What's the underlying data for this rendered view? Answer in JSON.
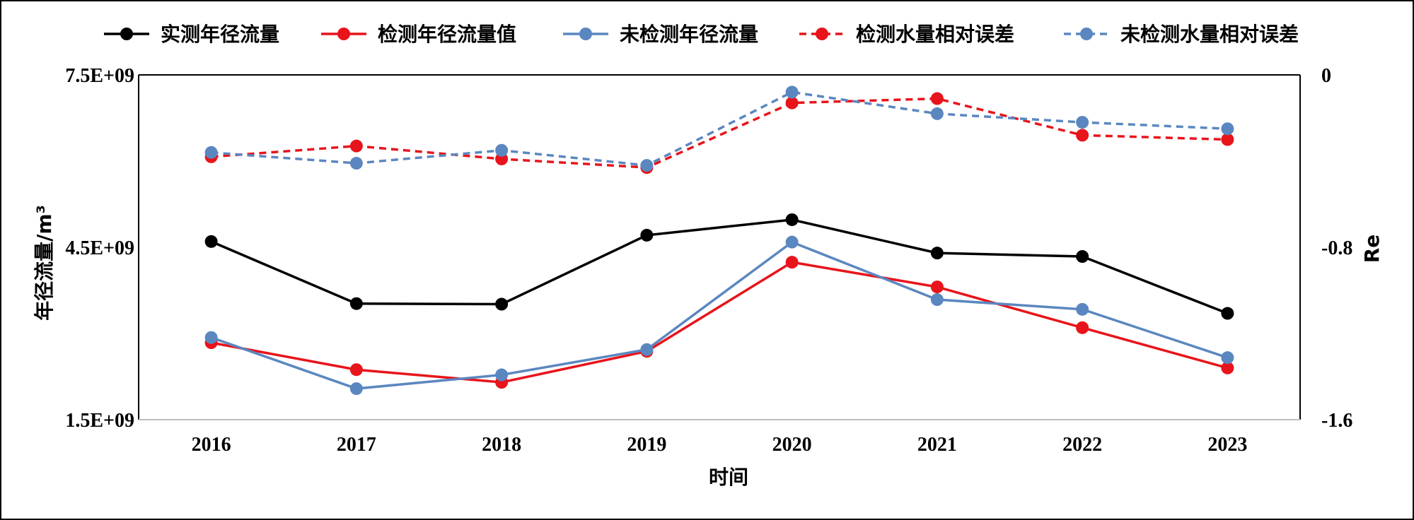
{
  "chart_data": {
    "type": "line",
    "categories": [
      "2016",
      "2017",
      "2018",
      "2019",
      "2020",
      "2021",
      "2022",
      "2023"
    ],
    "xlabel": "时间",
    "ylabel_left": "年径流量/m³",
    "ylabel_right": "Re",
    "left_axis": {
      "min": 1500000000,
      "max": 7500000000,
      "ticks": [
        "1.5E+09",
        "4.5E+09",
        "7.5E+09"
      ]
    },
    "right_axis": {
      "min": -1.6,
      "max": 0,
      "ticks": [
        "-1.6",
        "-0.8",
        "0"
      ]
    },
    "legend_position": "top",
    "series": [
      {
        "name": "实测年径流量",
        "axis": "left",
        "color": "#000000",
        "dashed": false,
        "values": [
          4600000000,
          3520000000,
          3510000000,
          4710000000,
          4980000000,
          4400000000,
          4340000000,
          3350000000
        ]
      },
      {
        "name": "检测年径流量值",
        "axis": "left",
        "color": "#e8141b",
        "dashed": false,
        "values": [
          2840000000,
          2370000000,
          2150000000,
          2690000000,
          4240000000,
          3810000000,
          3100000000,
          2400000000
        ]
      },
      {
        "name": "未检测年径流量",
        "axis": "left",
        "color": "#5b87c0",
        "dashed": false,
        "values": [
          2930000000,
          2040000000,
          2280000000,
          2720000000,
          4590000000,
          3590000000,
          3420000000,
          2580000000
        ]
      },
      {
        "name": "检测水量相对误差",
        "axis": "right",
        "color": "#e8141b",
        "dashed": true,
        "values": [
          -0.38,
          -0.33,
          -0.39,
          -0.43,
          -0.13,
          -0.11,
          -0.28,
          -0.3
        ]
      },
      {
        "name": "未检测水量相对误差",
        "axis": "right",
        "color": "#5b87c0",
        "dashed": true,
        "values": [
          -0.36,
          -0.41,
          -0.35,
          -0.42,
          -0.08,
          -0.18,
          -0.22,
          -0.25
        ]
      }
    ]
  }
}
